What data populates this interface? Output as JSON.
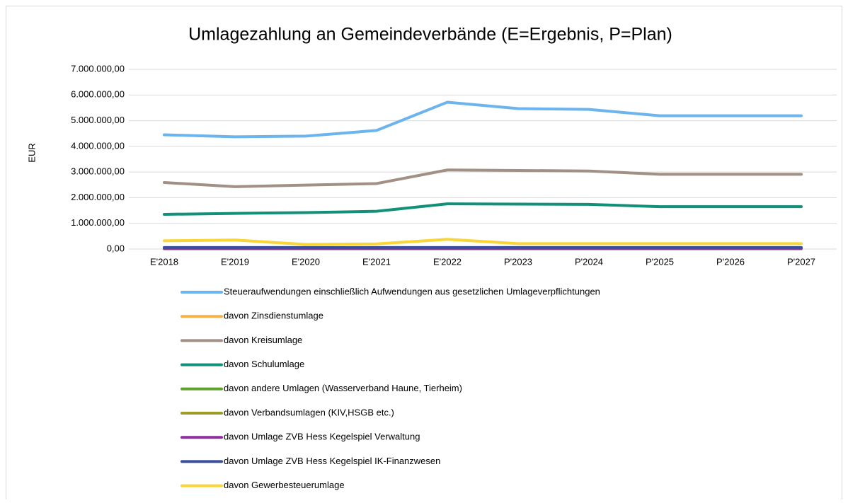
{
  "chart_data": {
    "type": "line",
    "title": "Umlagezahlung an Gemeindeverbände (E=Ergebnis, P=Plan)",
    "y_label": "EUR",
    "categories": [
      "E'2018",
      "E'2019",
      "E'2020",
      "E'2021",
      "E'2022",
      "P'2023",
      "P'2024",
      "P'2025",
      "P'2026",
      "P'2027"
    ],
    "ylim": [
      0,
      7000000
    ],
    "yticks": [
      {
        "value": 0,
        "label": "0,00"
      },
      {
        "value": 1000000,
        "label": "1.000.000,00"
      },
      {
        "value": 2000000,
        "label": "2.000.000,00"
      },
      {
        "value": 3000000,
        "label": "3.000.000,00"
      },
      {
        "value": 4000000,
        "label": "4.000.000,00"
      },
      {
        "value": 5000000,
        "label": "5.000.000,00"
      },
      {
        "value": 6000000,
        "label": "6.000.000,00"
      },
      {
        "value": 7000000,
        "label": "7.000.000,00"
      }
    ],
    "grid": true,
    "legend": "bottom",
    "series": [
      {
        "name": "Steueraufwendungen einschließlich Aufwendungen aus gesetzlichen Umlageverpflichtungen",
        "color": "#6cb4ee",
        "values": [
          4450000,
          4370000,
          4400000,
          4620000,
          5720000,
          5470000,
          5440000,
          5190000,
          5190000,
          5190000
        ]
      },
      {
        "name": "davon Zinsdienstumlage",
        "color": "#f6b04a",
        "values": [
          0,
          0,
          0,
          0,
          0,
          0,
          0,
          0,
          0,
          0
        ]
      },
      {
        "name": "davon Kreisumlage",
        "color": "#a28f85",
        "values": [
          2590000,
          2430000,
          2490000,
          2550000,
          3080000,
          3060000,
          3040000,
          2910000,
          2910000,
          2910000
        ]
      },
      {
        "name": "davon Schulumlage",
        "color": "#12907a",
        "values": [
          1350000,
          1390000,
          1420000,
          1470000,
          1760000,
          1750000,
          1740000,
          1650000,
          1650000,
          1650000
        ]
      },
      {
        "name": "davon andere Umlagen (Wasserverband Haune, Tierheim)",
        "color": "#5ea22e",
        "values": [
          20000,
          20000,
          20000,
          20000,
          20000,
          20000,
          20000,
          20000,
          20000,
          20000
        ]
      },
      {
        "name": "davon Verbandsumlagen (KIV,HSGB etc.)",
        "color": "#9c9c2a",
        "values": [
          50000,
          50000,
          50000,
          50000,
          50000,
          50000,
          50000,
          50000,
          50000,
          50000
        ]
      },
      {
        "name": "davon Umlage ZVB Hess Kegelspiel Verwaltung",
        "color": "#8e2ca0",
        "values": [
          30000,
          30000,
          30000,
          30000,
          30000,
          30000,
          30000,
          30000,
          30000,
          30000
        ]
      },
      {
        "name": "davon Umlage ZVB Hess Kegelspiel IK-Finanzwesen",
        "color": "#3a4ea0",
        "values": [
          60000,
          60000,
          60000,
          60000,
          60000,
          60000,
          60000,
          60000,
          60000,
          60000
        ]
      },
      {
        "name": "davon Gewerbesteuerumlage",
        "color": "#fad536",
        "values": [
          320000,
          350000,
          180000,
          200000,
          380000,
          210000,
          210000,
          210000,
          210000,
          210000
        ]
      }
    ]
  }
}
